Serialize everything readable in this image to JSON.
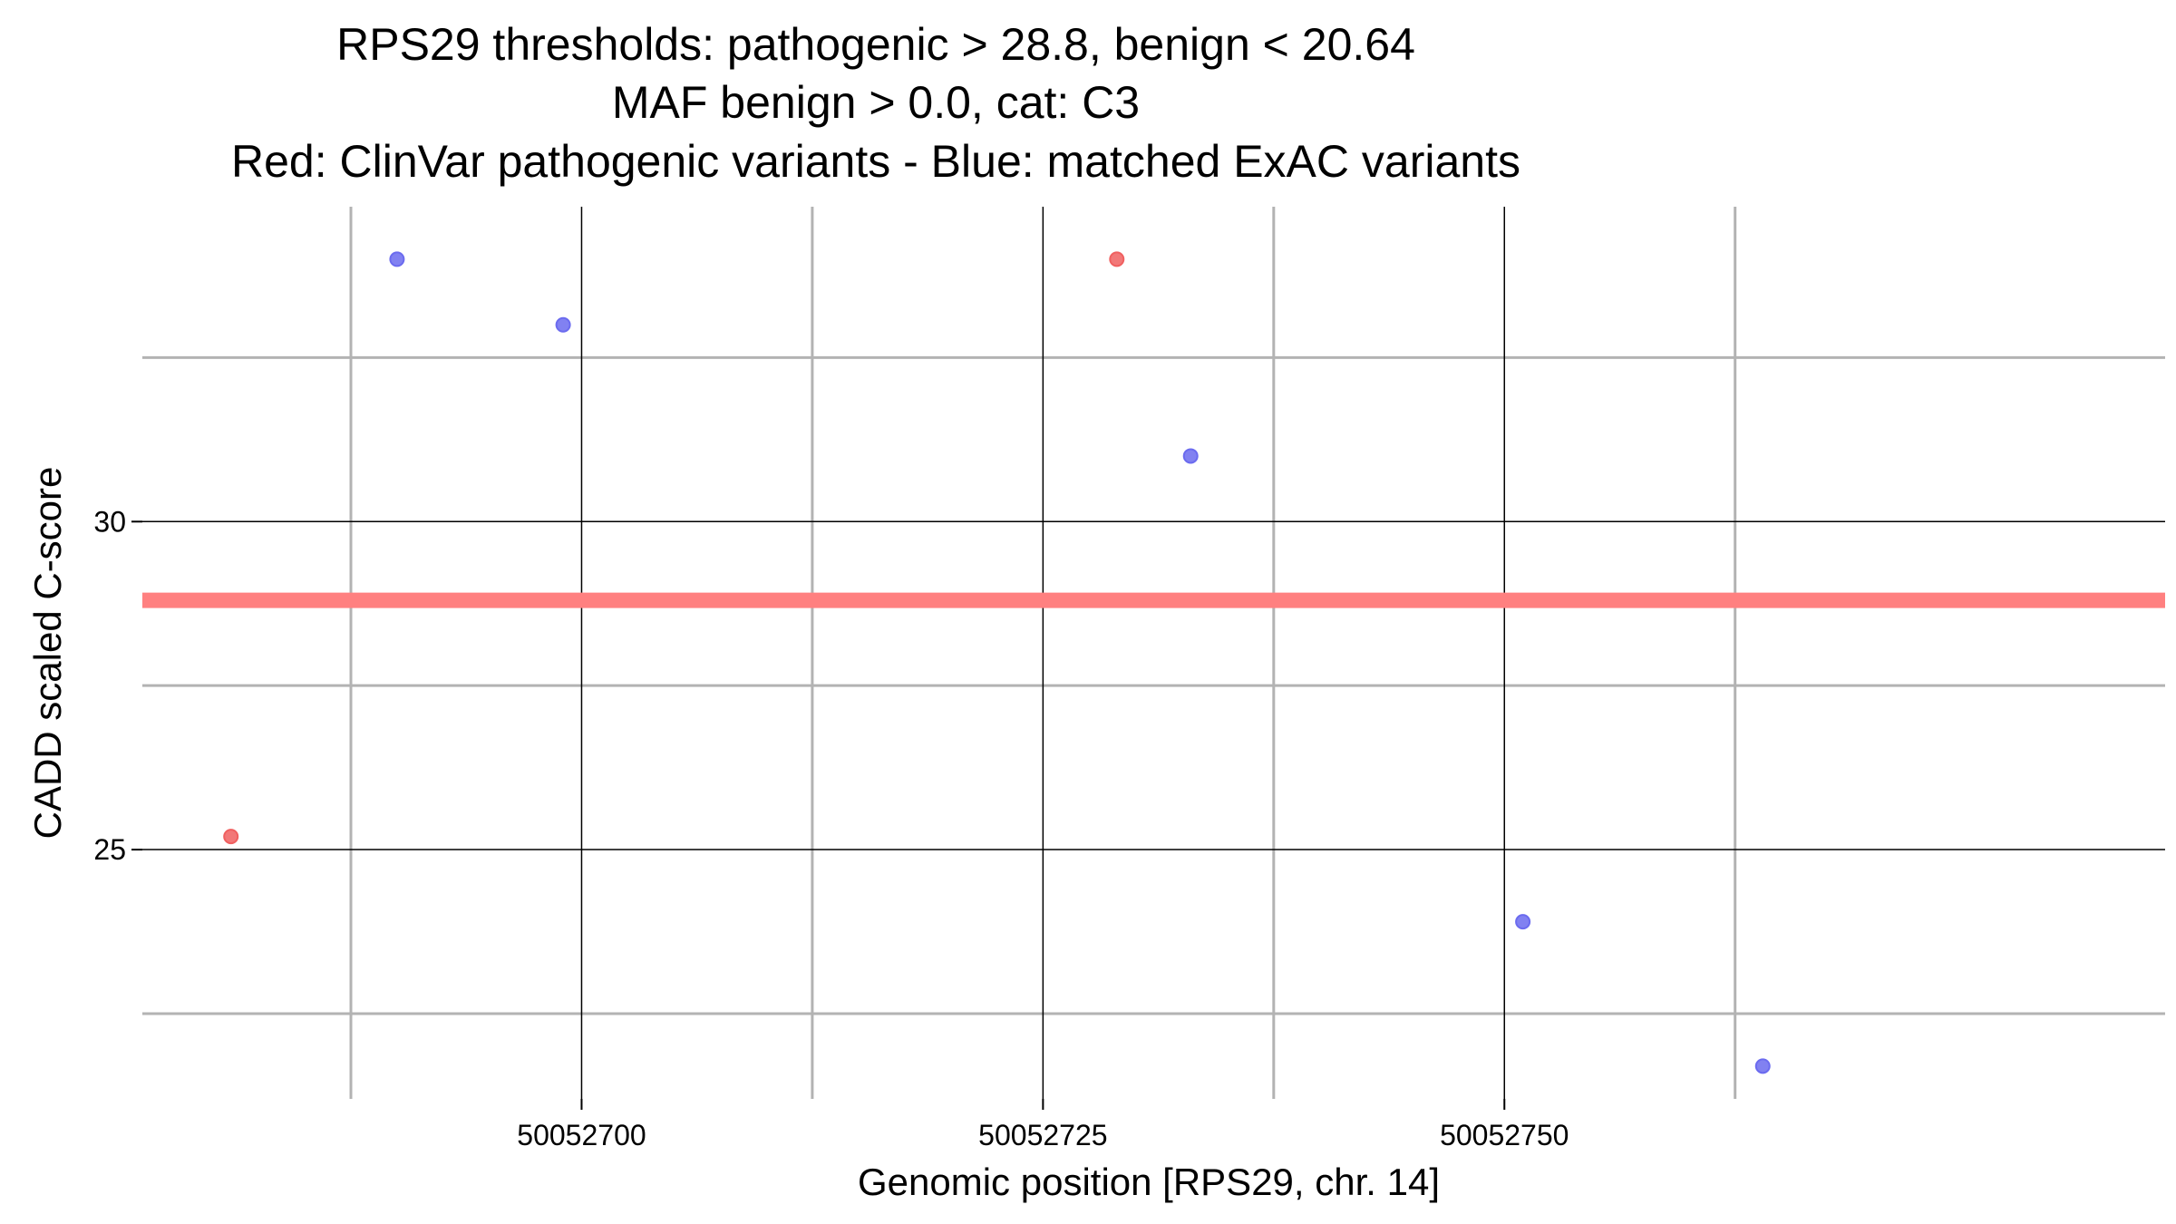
{
  "chart_data": {
    "type": "scatter",
    "title_lines": [
      "RPS29 thresholds: pathogenic > 28.8, benign < 20.64",
      "MAF benign > 0.0, cat: C3",
      "Red: ClinVar pathogenic variants - Blue: matched ExAC variants"
    ],
    "xlabel": "Genomic position [RPS29, chr. 14]",
    "ylabel": "CADD scaled C-score",
    "xlim": [
      50052676.2,
      50052785.8
    ],
    "ylim": [
      21.2,
      34.8
    ],
    "x_major_ticks": [
      50052700,
      50052725,
      50052750
    ],
    "x_tick_labels": [
      "50052700",
      "50052725",
      "50052750"
    ],
    "x_minor_ticks": [
      50052687.5,
      50052712.5,
      50052737.5,
      50052762.5
    ],
    "y_major_ticks": [
      25,
      30
    ],
    "y_tick_labels": [
      "25",
      "30"
    ],
    "y_minor_ticks": [
      22.5,
      27.5,
      32.5
    ],
    "threshold_line": {
      "name": "pathogenic threshold",
      "y": 28.8,
      "color": "#ff8080"
    },
    "series": [
      {
        "name": "ClinVar pathogenic variants",
        "color": "#f06060",
        "points": [
          {
            "x": 50052681,
            "y": 25.2
          },
          {
            "x": 50052729,
            "y": 34.0
          }
        ]
      },
      {
        "name": "matched ExAC variants",
        "color": "#6b6bef",
        "points": [
          {
            "x": 50052690,
            "y": 34.0
          },
          {
            "x": 50052699,
            "y": 33.0
          },
          {
            "x": 50052733,
            "y": 31.0
          },
          {
            "x": 50052751,
            "y": 23.9
          },
          {
            "x": 50052764,
            "y": 21.7
          }
        ]
      }
    ]
  }
}
